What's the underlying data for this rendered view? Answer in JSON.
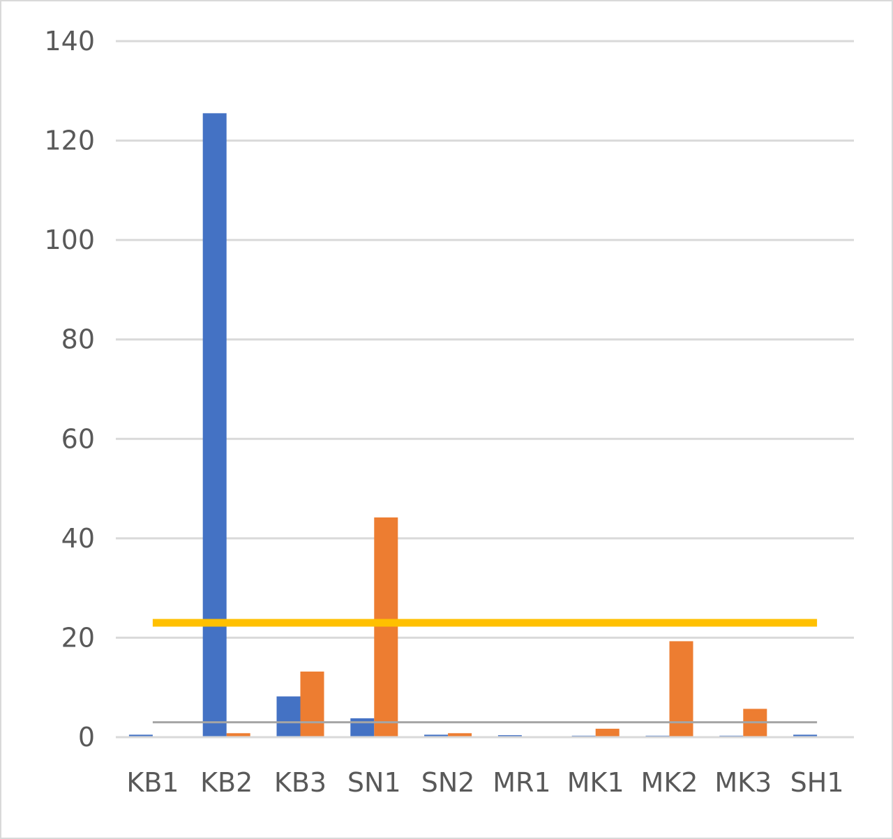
{
  "chart_data": {
    "type": "bar",
    "title": "",
    "xlabel": "",
    "ylabel": "",
    "categories": [
      "KB1",
      "KB2",
      "KB3",
      "SN1",
      "SN2",
      "MR1",
      "MK1",
      "MK2",
      "MK3",
      "SH1"
    ],
    "series": [
      {
        "color": "#4472c4",
        "values": [
          0.5,
          125.5,
          8.2,
          3.8,
          0.5,
          0.4,
          0.3,
          0.3,
          0.3,
          0.5
        ]
      },
      {
        "color": "#ed7d31",
        "values": [
          0.2,
          0.8,
          13.2,
          44.2,
          0.8,
          0.2,
          1.7,
          19.3,
          5.7,
          0.2
        ]
      }
    ],
    "reference_lines": [
      {
        "value": 23,
        "color": "#ffc000"
      },
      {
        "value": 3,
        "color": "#a5a5a5"
      }
    ],
    "ylim": [
      0,
      140
    ],
    "yticks": [
      0,
      20,
      40,
      60,
      80,
      100,
      120,
      140
    ],
    "grid": true,
    "legend": "none"
  }
}
